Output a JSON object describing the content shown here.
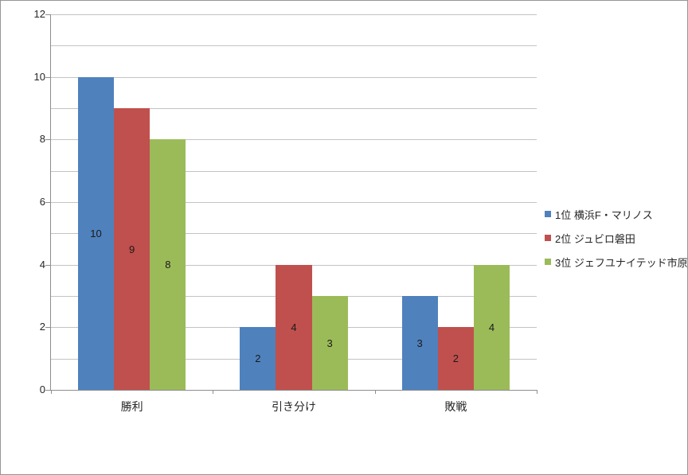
{
  "chart_data": {
    "type": "bar",
    "title": "",
    "categories": [
      "勝利",
      "引き分け",
      "敗戦"
    ],
    "series": [
      {
        "name": "1位  横浜F・マリノス",
        "color": "#4F81BD",
        "values": [
          10,
          2,
          3
        ]
      },
      {
        "name": "2位  ジュビロ磐田",
        "color": "#C0504D",
        "values": [
          9,
          4,
          2
        ]
      },
      {
        "name": "3位  ジェフユナイテッド市原",
        "color": "#9BBB59",
        "values": [
          8,
          3,
          4
        ]
      }
    ],
    "ylim": [
      0,
      12
    ],
    "y_tick_labels": [
      "0",
      "2",
      "4",
      "6",
      "8",
      "10",
      "12"
    ],
    "gridline_step": 1,
    "label_step": 2,
    "grid": true,
    "legend_position": "right",
    "data_labels": "center",
    "gap_width_percent": 150
  },
  "colors": {
    "gridline": "#c3c3c3",
    "axis": "#8e8e8e",
    "background": "#ffffff",
    "text": "#262626"
  }
}
